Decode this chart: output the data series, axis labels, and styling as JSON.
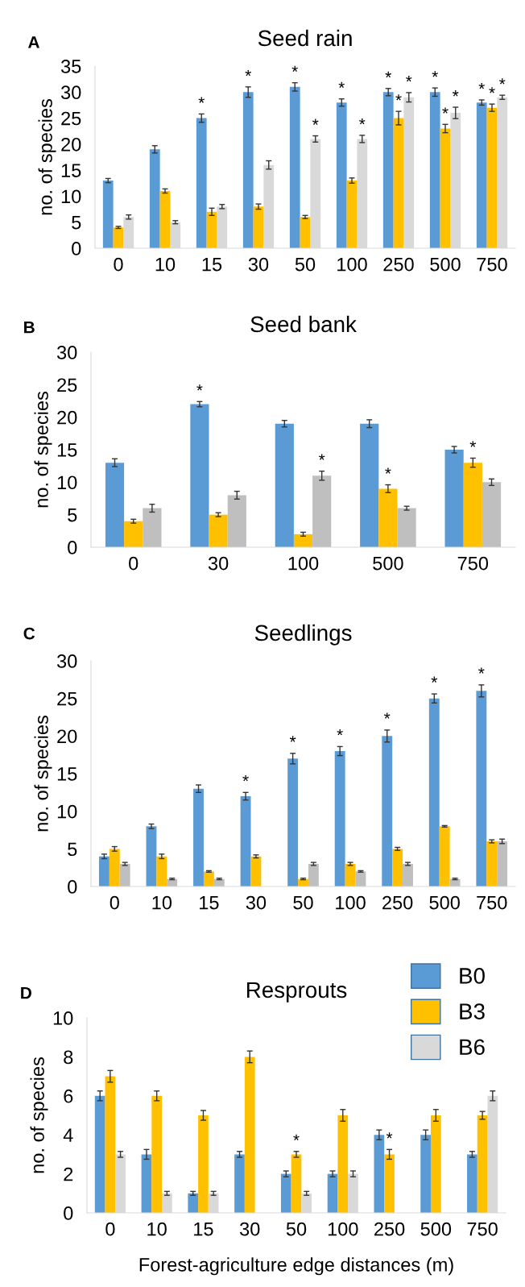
{
  "chart_data": [
    {
      "type": "bar",
      "title": "Seed rain",
      "ylabel": "no. of species",
      "annotations": [
        "A"
      ],
      "categories": [
        "0",
        "10",
        "15",
        "30",
        "50",
        "100",
        "250",
        "500",
        "750"
      ],
      "ylim": [
        0,
        35
      ],
      "yticks": [
        0,
        5,
        10,
        15,
        20,
        25,
        30,
        35
      ],
      "grid": false,
      "legend": false,
      "series": [
        {
          "color": "#5b9bd5",
          "values": [
            13,
            19,
            25,
            30,
            31,
            28,
            30,
            30,
            28
          ],
          "errors": [
            0.4,
            0.7,
            0.8,
            1,
            0.8,
            0.7,
            0.7,
            0.8,
            0.5
          ],
          "value_labels": [
            null,
            null,
            "*",
            "*",
            "*",
            "*",
            "*",
            "*",
            "*"
          ]
        },
        {
          "color": "#ffc000",
          "values": [
            4,
            11,
            7,
            8,
            6,
            13,
            25,
            23,
            27
          ],
          "errors": [
            0.2,
            0.4,
            0.7,
            0.5,
            0.3,
            0.5,
            1.3,
            0.8,
            0.7
          ],
          "value_labels": [
            null,
            null,
            null,
            null,
            null,
            null,
            "*",
            "*",
            "*"
          ]
        },
        {
          "color": "#d9d9d9",
          "values": [
            6,
            5,
            8,
            16,
            21,
            21,
            29,
            26,
            29
          ],
          "errors": [
            0.4,
            0.3,
            0.4,
            0.8,
            0.6,
            0.7,
            0.9,
            1.1,
            0.4
          ],
          "value_labels": [
            null,
            null,
            null,
            null,
            "*",
            "*",
            "*",
            "*",
            "*"
          ]
        }
      ]
    },
    {
      "type": "bar",
      "title": "Seed bank",
      "ylabel": "no. of species",
      "annotations": [
        "B"
      ],
      "categories": [
        "0",
        "30",
        "100",
        "500",
        "750"
      ],
      "ylim": [
        0,
        30
      ],
      "yticks": [
        0,
        5,
        10,
        15,
        20,
        25,
        30
      ],
      "grid": false,
      "legend": false,
      "series": [
        {
          "color": "#5b9bd5",
          "values": [
            13,
            22,
            19,
            19,
            15
          ],
          "errors": [
            0.6,
            0.4,
            0.5,
            0.6,
            0.5
          ],
          "value_labels": [
            null,
            "*",
            null,
            null,
            null
          ]
        },
        {
          "color": "#ffc000",
          "values": [
            4,
            5,
            2,
            9,
            13
          ],
          "errors": [
            0.3,
            0.3,
            0.3,
            0.6,
            0.7
          ],
          "value_labels": [
            null,
            null,
            null,
            "*",
            "*"
          ]
        },
        {
          "color": "#bfbfbf",
          "values": [
            6,
            8,
            11,
            6,
            10
          ],
          "errors": [
            0.6,
            0.6,
            0.7,
            0.3,
            0.5
          ],
          "value_labels": [
            null,
            null,
            "*",
            null,
            null
          ]
        }
      ]
    },
    {
      "type": "bar",
      "title": "Seedlings",
      "ylabel": "no. of species",
      "annotations": [
        "C"
      ],
      "categories": [
        "0",
        "10",
        "15",
        "30",
        "50",
        "100",
        "250",
        "500",
        "750"
      ],
      "ylim": [
        0,
        30
      ],
      "yticks": [
        0,
        5,
        10,
        15,
        20,
        25,
        30
      ],
      "grid": false,
      "legend": false,
      "series": [
        {
          "color": "#5b9bd5",
          "values": [
            4,
            8,
            13,
            12,
            17,
            18,
            20,
            25,
            26
          ],
          "errors": [
            0.3,
            0.3,
            0.5,
            0.5,
            0.7,
            0.6,
            0.8,
            0.6,
            0.8
          ],
          "value_labels": [
            null,
            null,
            null,
            "*",
            "*",
            "*",
            "*",
            "*",
            "*"
          ]
        },
        {
          "color": "#ffc000",
          "values": [
            5,
            4,
            2,
            4,
            1,
            3,
            5,
            8,
            6
          ],
          "errors": [
            0.3,
            0.3,
            0.1,
            0.2,
            0.1,
            0.2,
            0.2,
            0.1,
            0.2
          ]
        },
        {
          "color": "#bfbfbf",
          "values": [
            3,
            1,
            1,
            null,
            3,
            2,
            3,
            1,
            6
          ],
          "errors": [
            0.2,
            0.1,
            0.1,
            null,
            0.2,
            0.1,
            0.2,
            0.1,
            0.3
          ]
        }
      ]
    },
    {
      "type": "bar",
      "title": "Resprouts",
      "ylabel": "no. of species",
      "xlabel": "Forest-agriculture edge distances (m)",
      "annotations": [
        "D"
      ],
      "categories": [
        "0",
        "10",
        "15",
        "30",
        "50",
        "100",
        "250",
        "500",
        "750"
      ],
      "ylim": [
        0,
        10
      ],
      "yticks": [
        0,
        2,
        4,
        6,
        8,
        10
      ],
      "grid": false,
      "legend": "top right",
      "series": [
        {
          "name": "B0",
          "color": "#5b9bd5",
          "values": [
            6,
            3,
            1,
            3,
            2,
            2,
            4,
            4,
            3
          ],
          "errors": [
            0.25,
            0.25,
            0.1,
            0.15,
            0.15,
            0.15,
            0.25,
            0.25,
            0.15
          ]
        },
        {
          "name": "B3",
          "color": "#ffc000",
          "values": [
            7,
            6,
            5,
            8,
            3,
            5,
            3,
            5,
            5
          ],
          "errors": [
            0.3,
            0.25,
            0.25,
            0.3,
            0.15,
            0.3,
            0.25,
            0.3,
            0.2
          ],
          "value_labels": [
            null,
            null,
            null,
            null,
            "*",
            null,
            "*",
            null,
            null
          ]
        },
        {
          "name": "B6",
          "color": "#d9d9d9",
          "values": [
            3,
            1,
            1,
            null,
            1,
            2,
            null,
            null,
            6
          ],
          "errors": [
            0.15,
            0.1,
            0.1,
            null,
            0.1,
            0.15,
            null,
            null,
            0.25
          ]
        }
      ]
    }
  ]
}
